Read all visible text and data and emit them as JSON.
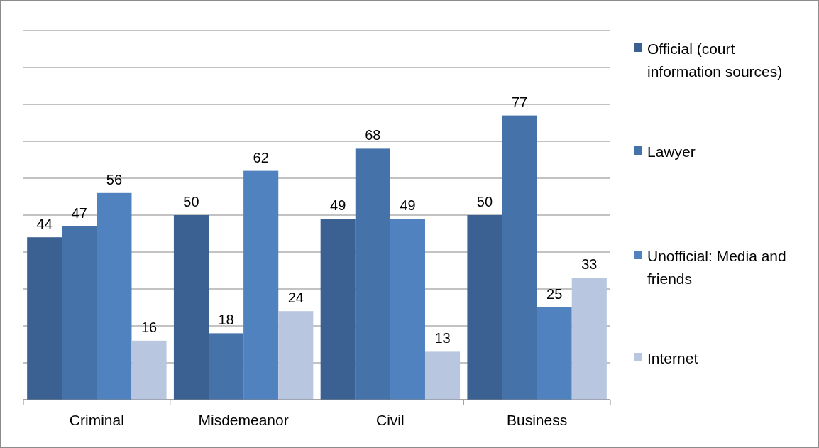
{
  "chart_data": {
    "type": "bar",
    "categories": [
      "Criminal",
      "Misdemeanor",
      "Civil",
      "Business"
    ],
    "series": [
      {
        "name": "Official (court information sources)",
        "color": "#3b6092",
        "values": [
          44,
          50,
          49,
          50
        ]
      },
      {
        "name": "Lawyer",
        "color": "#4573a9",
        "values": [
          47,
          18,
          68,
          77
        ]
      },
      {
        "name": "Unofficial: Media and friends",
        "color": "#4f82be",
        "values": [
          56,
          62,
          49,
          25
        ]
      },
      {
        "name": "Internet",
        "color": "#b9c6df",
        "values": [
          16,
          24,
          13,
          33
        ]
      }
    ],
    "ylim": [
      0,
      100
    ],
    "yticks": [
      {
        "value": 0,
        "label": null
      },
      {
        "value": 10,
        "label": null
      },
      {
        "value": 20,
        "label": null
      },
      {
        "value": 30,
        "label": null
      },
      {
        "value": 40,
        "label": null
      },
      {
        "value": 50,
        "label": null
      },
      {
        "value": 60,
        "label": null
      },
      {
        "value": 70,
        "label": null
      },
      {
        "value": 80,
        "label": null
      },
      {
        "value": 90,
        "label": null
      },
      {
        "value": 100,
        "label": null
      }
    ],
    "tick_labels": "x",
    "grid": "y",
    "data_labels": true,
    "legend": "right"
  }
}
